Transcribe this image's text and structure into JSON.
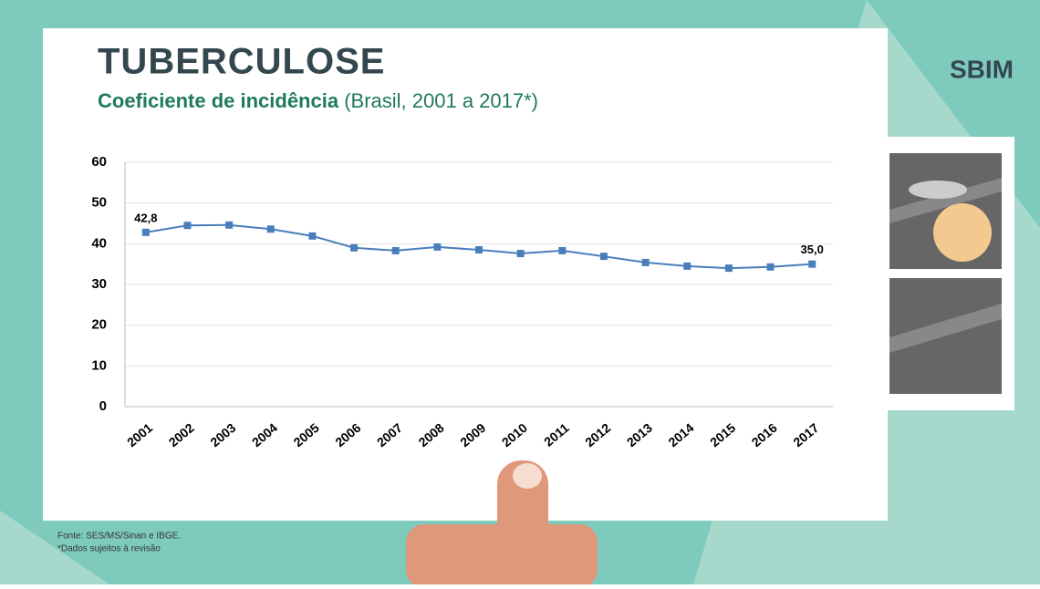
{
  "header": {
    "title": "TUBERCULOSE",
    "subtitle_bold": "Coeficiente de incidência",
    "subtitle_rest": "(Brasil, 2001 a 2017*)",
    "logo": "SBIM"
  },
  "chart_data": {
    "type": "line",
    "categories": [
      "2001",
      "2002",
      "2003",
      "2004",
      "2005",
      "2006",
      "2007",
      "2008",
      "2009",
      "2010",
      "2011",
      "2012",
      "2013",
      "2014",
      "2015",
      "2016",
      "2017"
    ],
    "series": [
      {
        "color": "#4a7ebb",
        "values": [
          42.8,
          44.5,
          44.6,
          43.6,
          41.9,
          39.0,
          38.3,
          39.2,
          38.5,
          37.6,
          38.3,
          36.9,
          35.4,
          34.5,
          34.0,
          34.3,
          35.0
        ],
        "value_labels": [
          "42,8",
          null,
          null,
          null,
          null,
          null,
          null,
          null,
          null,
          null,
          null,
          null,
          null,
          null,
          null,
          null,
          "35,0"
        ]
      }
    ],
    "ylim": [
      0,
      60
    ],
    "yticks": [
      0,
      10,
      20,
      30,
      40,
      50,
      60
    ],
    "grid": true
  },
  "footer": {
    "source": "Fonte: SES/MS/Sinan e IBGE.",
    "note": "*Dados sujeitos à revisão"
  }
}
